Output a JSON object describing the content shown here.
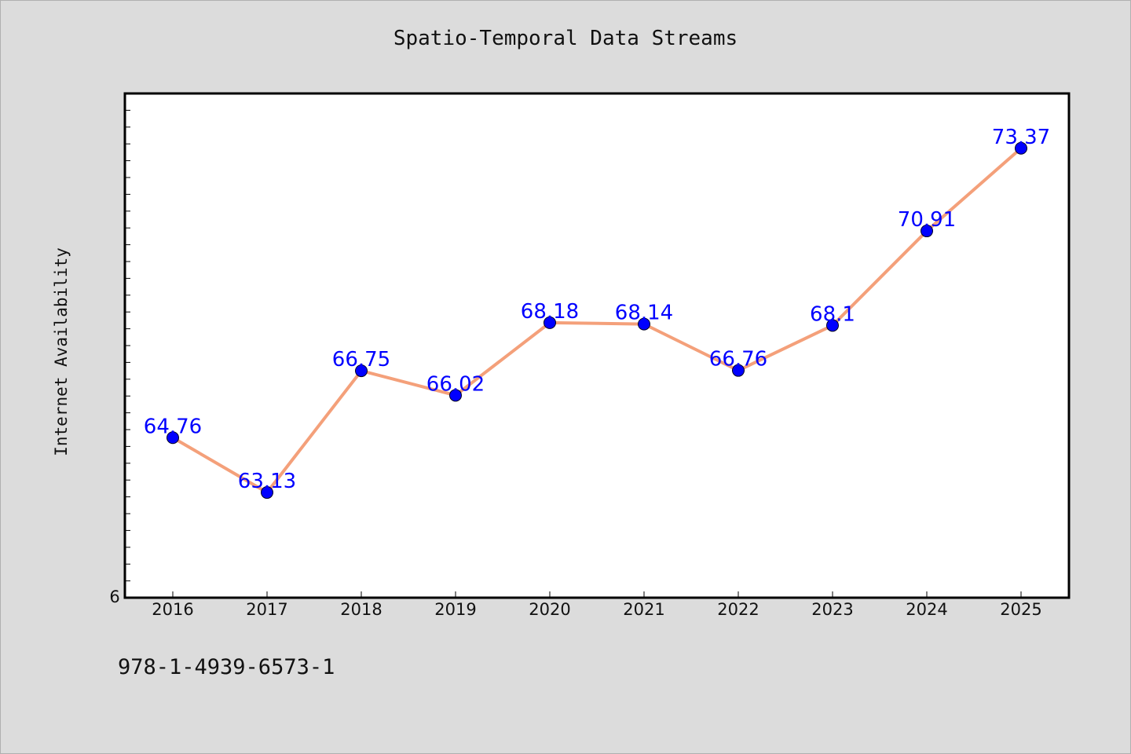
{
  "chart_data": {
    "type": "line",
    "title": "Spatio-Temporal Data Streams",
    "xlabel": "",
    "ylabel": "Internet Availability",
    "categories": [
      "2016",
      "2017",
      "2018",
      "2019",
      "2020",
      "2021",
      "2022",
      "2023",
      "2024",
      "2025"
    ],
    "series": [
      {
        "values": [
          64.76,
          63.13,
          66.75,
          66.02,
          68.18,
          68.14,
          66.76,
          68.1,
          70.91,
          73.37
        ],
        "labels": [
          "64.76",
          "63.13",
          "66.75",
          "66.02",
          "68.18",
          "68.14",
          "66.76",
          "68.1",
          "70.91",
          "73.37"
        ],
        "line_color": "#f4a07a",
        "marker_color": "#0000ff"
      }
    ],
    "ylim": [
      60,
      75
    ],
    "y_tick_label": "6",
    "grid": false,
    "legend": "none"
  },
  "footer": {
    "code": "978-1-4939-6573-1"
  }
}
